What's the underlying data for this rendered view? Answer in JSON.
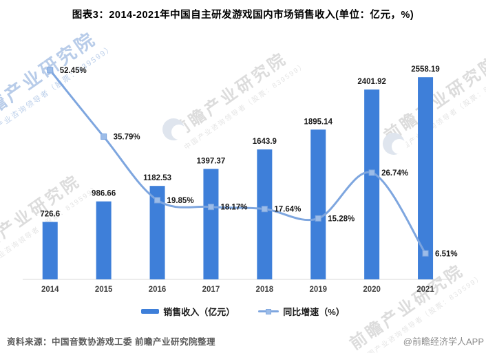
{
  "title": "图表3：2014-2021年中国自主研发游戏国内市场销售收入(单位：亿元，%)",
  "chart_data": {
    "type": "bar",
    "subtype": "bar-line-combo",
    "categories": [
      "2014",
      "2015",
      "2016",
      "2017",
      "2018",
      "2019",
      "2020",
      "2021"
    ],
    "series": [
      {
        "name": "销售收入（亿元）",
        "type": "bar",
        "axis": "left",
        "values": [
          726.6,
          986.66,
          1182.53,
          1397.37,
          1643.9,
          1895.14,
          2401.92,
          2558.19
        ]
      },
      {
        "name": "同比增速（%）",
        "type": "line",
        "axis": "right",
        "values": [
          52.45,
          35.79,
          19.85,
          18.17,
          17.64,
          15.28,
          26.74,
          6.51
        ]
      }
    ],
    "title": "图表3：2014-2021年中国自主研发游戏国内市场销售收入(单位：亿元，%)",
    "xlabel": "",
    "ylabel": "",
    "bar_ylim": [
      0,
      2558.19
    ],
    "line_ylim": [
      0,
      52.45
    ],
    "grid": false,
    "legend_position": "bottom",
    "data_labels": true
  },
  "colors": {
    "bar": "#3E7FD9",
    "line": "#7EA6DF",
    "marker_fill": "#9CBCE8",
    "axis": "#D9D9D9",
    "value_label": "#1a1a1a",
    "year_label": "#404040"
  },
  "footer": {
    "source": "资料来源：中国音数协游戏工委 前瞻产业研究院整理",
    "brand": "@前瞻经济学人APP"
  },
  "watermark": {
    "big": "前瞻产业研究院",
    "small": "中国产业咨询领导者（股票：839599）"
  }
}
